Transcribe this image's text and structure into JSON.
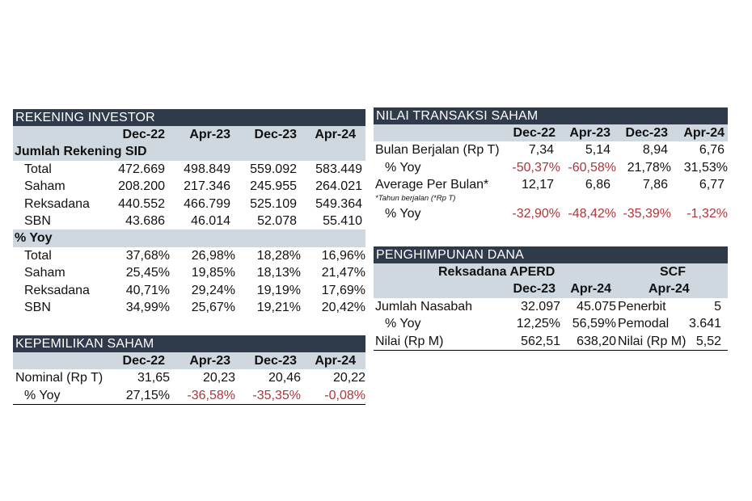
{
  "rekening_investor": {
    "title": "REKENING INVESTOR",
    "columns": [
      "Dec-22",
      "Apr-23",
      "Dec-23",
      "Apr-24"
    ],
    "section1": "Jumlah Rekening SID",
    "rows1": [
      {
        "label": "Total",
        "v": [
          "472.669",
          "498.849",
          "559.092",
          "583.449"
        ]
      },
      {
        "label": "Saham",
        "v": [
          "208.200",
          "217.346",
          "245.955",
          "264.021"
        ]
      },
      {
        "label": "Reksadana",
        "v": [
          "440.552",
          "466.799",
          "525.109",
          "549.364"
        ]
      },
      {
        "label": "SBN",
        "v": [
          "43.686",
          "46.014",
          "52.078",
          "55.410"
        ]
      }
    ],
    "section2": "% Yoy",
    "rows2": [
      {
        "label": "Total",
        "v": [
          "37,68%",
          "26,98%",
          "18,28%",
          "16,96%"
        ]
      },
      {
        "label": "Saham",
        "v": [
          "25,45%",
          "19,85%",
          "18,13%",
          "21,47%"
        ]
      },
      {
        "label": "Reksadana",
        "v": [
          "40,71%",
          "29,24%",
          "19,19%",
          "17,69%"
        ]
      },
      {
        "label": "SBN",
        "v": [
          "34,99%",
          "25,67%",
          "19,21%",
          "20,42%"
        ]
      }
    ]
  },
  "kepemilikan_saham": {
    "title": "KEPEMILIKAN SAHAM",
    "columns": [
      "Dec-22",
      "Apr-23",
      "Dec-23",
      "Apr-24"
    ],
    "rows": [
      {
        "label": "Nominal (Rp T)",
        "v": [
          "31,65",
          "20,23",
          "20,46",
          "20,22"
        ]
      },
      {
        "label": "% Yoy",
        "v": [
          "27,15%",
          "-36,58%",
          "-35,35%",
          "-0,08%"
        ]
      }
    ]
  },
  "nilai_transaksi": {
    "title": "NILAI TRANSAKSI SAHAM",
    "columns": [
      "Dec-22",
      "Apr-23",
      "Dec-23",
      "Apr-24"
    ],
    "rows": [
      {
        "label": "Bulan Berjalan (Rp T)",
        "v": [
          "7,34",
          "5,14",
          "8,94",
          "6,76"
        ]
      },
      {
        "label": "% Yoy",
        "v": [
          "-50,37%",
          "-60,58%",
          "21,78%",
          "31,53%"
        ]
      },
      {
        "label": "Average Per Bulan*",
        "v": [
          "12,17",
          "6,86",
          "7,86",
          "6,77"
        ]
      },
      {
        "label": "% Yoy",
        "v": [
          "-32,90%",
          "-48,42%",
          "-35,39%",
          "-1,32%"
        ]
      }
    ],
    "footnote": "*Tahun berjalan (*Rp T)"
  },
  "penghimpunan_dana": {
    "title": "PENGHIMPUNAN DANA",
    "group1": "Reksadana APERD",
    "group1_columns": [
      "Dec-23",
      "Apr-24"
    ],
    "group2": "SCF",
    "group2_column": "Apr-24",
    "rows": [
      {
        "label": "Jumlah Nasabah",
        "v": [
          "32.097",
          "45.075"
        ],
        "scf_label": "Penerbit",
        "scf_value": "5"
      },
      {
        "label": "% Yoy",
        "v": [
          "12,25%",
          "56,59%"
        ],
        "scf_label": "Pemodal",
        "scf_value": "3.641"
      },
      {
        "label": "Nilai (Rp M)",
        "v": [
          "562,51",
          "638,20"
        ],
        "scf_label": "Nilai (Rp M)",
        "scf_value": "5,52"
      }
    ]
  },
  "colors": {
    "header_bg": "#2f3a4a",
    "band_bg": "#cfd8df",
    "negative": "#b0343b"
  }
}
